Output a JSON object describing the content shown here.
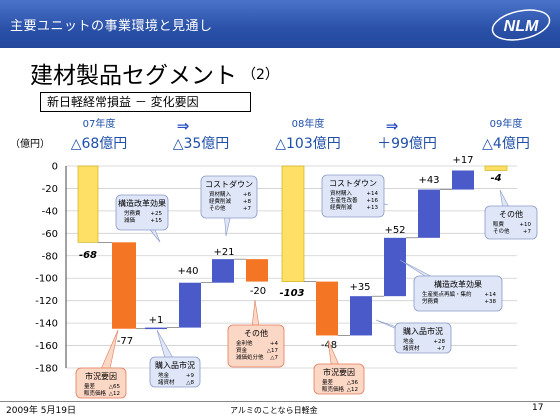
{
  "header": {
    "title": "主要ユニットの事業環境と見通し",
    "logo_text": "NLM"
  },
  "segment_title": "建材製品セグメント",
  "segment_num": "（2）",
  "box_label": "新日軽経常損益 － 変化要因",
  "chart_data": {
    "type": "waterfall",
    "unit_label": "（億円）",
    "ylim": [
      -180,
      0
    ],
    "yticks": [
      0,
      -20,
      -40,
      -60,
      -80,
      -100,
      -120,
      -140,
      -160,
      -180
    ],
    "tick_labels": [
      "0",
      "-20",
      "-40",
      "-60",
      "-80",
      "-100",
      "-120",
      "-140",
      "-160",
      "-180"
    ],
    "year_labels": [
      {
        "year": "07年度",
        "value": "△68億円"
      },
      {
        "year": "",
        "value": "△35億円"
      },
      {
        "year": "08年度",
        "value": "△103億円"
      },
      {
        "year": "",
        "value": "＋99億円"
      },
      {
        "year": "09年度",
        "value": "△4億円"
      }
    ],
    "arrow_symbol": "⇒",
    "bars": [
      {
        "kind": "total",
        "from": 0,
        "to": -68,
        "label": "-68",
        "color": "#ffe066"
      },
      {
        "kind": "decrease",
        "from": -68,
        "to": -145,
        "label": "-77",
        "color": "#f47524"
      },
      {
        "kind": "increase",
        "from": -145,
        "to": -144,
        "label": "+1",
        "color": "#4a5ac8"
      },
      {
        "kind": "increase",
        "from": -144,
        "to": -104,
        "label": "+40",
        "color": "#4a5ac8"
      },
      {
        "kind": "increase",
        "from": -104,
        "to": -83,
        "label": "+21",
        "color": "#4a5ac8"
      },
      {
        "kind": "decrease",
        "from": -83,
        "to": -103,
        "label": "-20",
        "color": "#f47524"
      },
      {
        "kind": "total",
        "from": 0,
        "to": -103,
        "label": "-103",
        "color": "#ffe066"
      },
      {
        "kind": "decrease",
        "from": -103,
        "to": -151,
        "label": "-48",
        "color": "#f47524"
      },
      {
        "kind": "increase",
        "from": -151,
        "to": -116,
        "label": "+35",
        "color": "#4a5ac8"
      },
      {
        "kind": "increase",
        "from": -116,
        "to": -64,
        "label": "+52",
        "color": "#4a5ac8"
      },
      {
        "kind": "increase",
        "from": -64,
        "to": -21,
        "label": "+43",
        "color": "#4a5ac8"
      },
      {
        "kind": "increase",
        "from": -21,
        "to": -4,
        "label": "+17",
        "color": "#4a5ac8"
      },
      {
        "kind": "total",
        "from": 0,
        "to": -4,
        "label": "-4",
        "color": "#ffe066"
      }
    ],
    "callouts": [
      {
        "title": "構造改革効果",
        "rows": [
          [
            "労務費",
            "+25"
          ],
          [
            "減価",
            "+15"
          ]
        ],
        "style": "blue"
      },
      {
        "title": "コストダウン",
        "rows": [
          [
            "資材購入",
            "+6"
          ],
          [
            "経費削減",
            "+8"
          ],
          [
            "その他",
            "+7"
          ]
        ],
        "style": "blue"
      },
      {
        "title": "市況要因",
        "rows": [
          [
            "量差",
            "△65"
          ],
          [
            "販売価格",
            "△12"
          ]
        ],
        "style": "red"
      },
      {
        "title": "購入品市況",
        "rows": [
          [
            "地金",
            "+9"
          ],
          [
            "諸資材",
            "△8"
          ]
        ],
        "style": "blue"
      },
      {
        "title": "その他",
        "rows": [
          [
            "金利他",
            "+4"
          ],
          [
            "資金",
            "△17"
          ],
          [
            "減価処分他",
            "△7"
          ]
        ],
        "style": "red"
      },
      {
        "title": "コストダウン",
        "rows": [
          [
            "資材購入",
            "+14"
          ],
          [
            "生産性改善",
            "+16"
          ],
          [
            "経費削減",
            "+13"
          ]
        ],
        "style": "blue"
      },
      {
        "title": "その他",
        "rows": [
          [
            "販費",
            "+10"
          ],
          [
            "その他",
            "+7"
          ]
        ],
        "style": "blue"
      },
      {
        "title": "構造改革効果",
        "rows": [
          [
            "生産拠点再編・集約",
            "+14"
          ],
          [
            "労務費",
            "+38"
          ]
        ],
        "style": "blue"
      },
      {
        "title": "購入品市況",
        "rows": [
          [
            "地金",
            "+28"
          ],
          [
            "諸資材",
            "+7"
          ]
        ],
        "style": "blue"
      },
      {
        "title": "市況要因",
        "rows": [
          [
            "量差",
            "△36"
          ],
          [
            "販売価格",
            "△12"
          ]
        ],
        "style": "red"
      }
    ]
  },
  "footer": {
    "date": "2009年 5月19日",
    "tag": "アルミのことなら日軽金",
    "page": "17"
  }
}
